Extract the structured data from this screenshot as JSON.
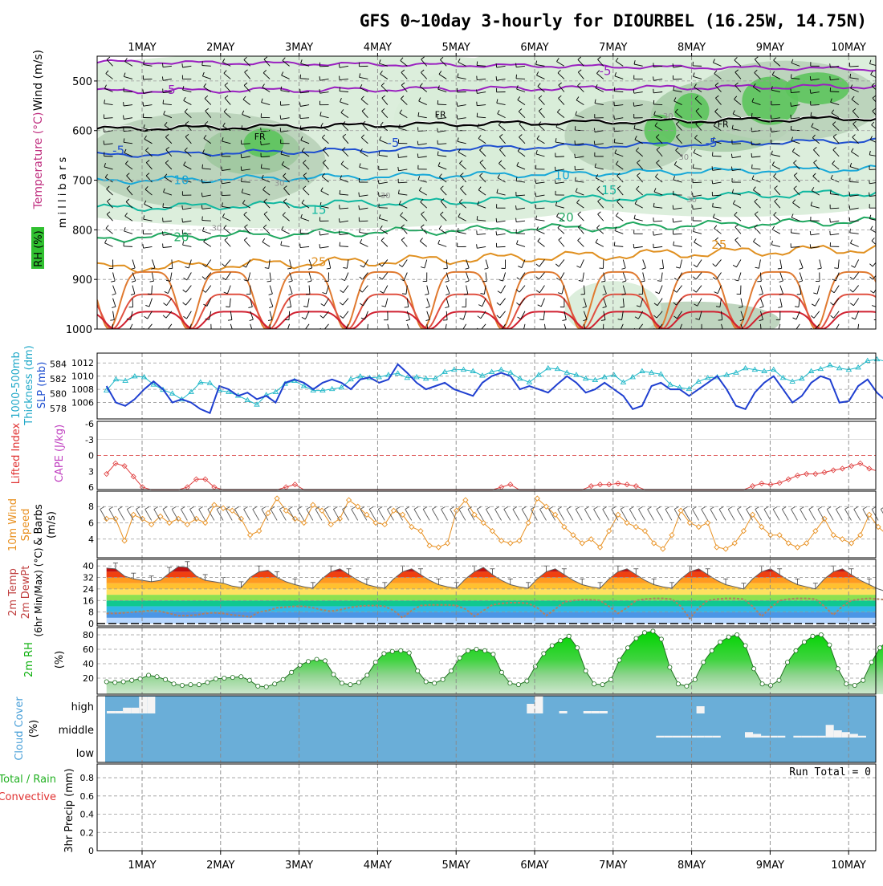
{
  "title": "GFS 0~10day 3-hourly for DIOURBEL (16.25W, 14.75N)",
  "date_labels": [
    "1MAY",
    "2MAY",
    "3MAY",
    "4MAY",
    "5MAY",
    "6MAY",
    "7MAY",
    "8MAY",
    "9MAY",
    "10MAY"
  ],
  "colors": {
    "purple": "#9a20c0",
    "black": "#000000",
    "blue": "#1f4fd0",
    "cyan": "#17a8d8",
    "teal": "#10b8a0",
    "green_iso": "#20a860",
    "orange": "#e09020",
    "red": "#e03030",
    "cyan_thk": "#20b8c8",
    "slp_blue": "#1f3fd0",
    "cape_red": "#e04040",
    "wind_orange": "#e89020",
    "rh_green": "#10c010",
    "cloud_blue": "#6aaed8"
  },
  "chart_data": [
    {
      "panel": "upper-air",
      "type": "contour",
      "ylabel": "m i l l i b a r s",
      "left_labels": [
        "RH (%)",
        "Temperature (°C)",
        "Wind (m/s)"
      ],
      "y_ticks": [
        500,
        600,
        700,
        800,
        900,
        1000
      ],
      "ylim": [
        450,
        1000
      ],
      "temperature_labels": [
        {
          "text": "-5",
          "day": 0.35,
          "p": 518
        },
        {
          "text": "-5",
          "day": 5.9,
          "p": 480
        },
        {
          "text": "FR",
          "day": 1.5,
          "p": 610
        },
        {
          "text": "FR",
          "day": 3.8,
          "p": 566
        },
        {
          "text": "FR",
          "day": 7.4,
          "p": 585
        },
        {
          "text": "-5",
          "day": -0.3,
          "p": 640
        },
        {
          "text": "-5",
          "day": 3.2,
          "p": 625
        },
        {
          "text": "-5",
          "day": 7.25,
          "p": 625
        },
        {
          "text": "10",
          "day": 0.5,
          "p": 700
        },
        {
          "text": "10",
          "day": 5.35,
          "p": 690
        },
        {
          "text": "15",
          "day": 2.25,
          "p": 760
        },
        {
          "text": "15",
          "day": 5.95,
          "p": 720
        },
        {
          "text": "20",
          "day": 0.5,
          "p": 815
        },
        {
          "text": "20",
          "day": 5.4,
          "p": 775
        },
        {
          "text": "25",
          "day": 2.25,
          "p": 865
        },
        {
          "text": "25",
          "day": 7.35,
          "p": 830
        }
      ],
      "rh_labels": [
        {
          "text": "30",
          "day": 1.75,
          "p": 705
        },
        {
          "text": "30",
          "day": 0.95,
          "p": 795
        },
        {
          "text": "30",
          "day": 3.1,
          "p": 730
        },
        {
          "text": "30",
          "day": 6.7,
          "p": 570
        },
        {
          "text": "30",
          "day": 6.9,
          "p": 652
        },
        {
          "text": "30",
          "day": 7.0,
          "p": 738
        }
      ]
    },
    {
      "panel": "thickness-slp",
      "type": "line",
      "left_labels": [
        "1000-500mb",
        "Thickness (dm)",
        "SLP (mb)"
      ],
      "left_ticks": [
        578,
        580,
        582,
        584
      ],
      "right_ticks": [
        1006,
        1008,
        1010,
        1012
      ],
      "series": [
        {
          "unit": "dm",
          "values": [
            580.4,
            581.9,
            581.7,
            582.3,
            582.2,
            581.2,
            580.5,
            580.0,
            579.2,
            580.2,
            581.5,
            581.4,
            580.4,
            580.2,
            579.7,
            579.1,
            578.5,
            579.8,
            580.2,
            581.3,
            581.7,
            581.0,
            580.4,
            580.4,
            580.6,
            580.8,
            581.9,
            582.3,
            582.1,
            582.2,
            582.5,
            582.7,
            582.1,
            582.2,
            582.0,
            582.0,
            582.9,
            583.2,
            583.2,
            583.0,
            582.4,
            582.9,
            583.2,
            582.8,
            582.0,
            581.5,
            582.5,
            583.4,
            583.3,
            582.8,
            582.5,
            582.0,
            581.8,
            582.2,
            582.5,
            581.5,
            582.2,
            583.0,
            582.8,
            582.6,
            581.2,
            580.8,
            580.6,
            581.6,
            582.1,
            582.2,
            582.5,
            582.8,
            583.4,
            583.2,
            583.0,
            583.2,
            582.1,
            581.6,
            582.0,
            583.0,
            583.3,
            583.8,
            583.4,
            583.2,
            583.5,
            584.4,
            584.6,
            584.3,
            583.5,
            583.0
          ]
        },
        {
          "unit": "mb",
          "values": [
            1008.5,
            1006.0,
            1005.5,
            1006.5,
            1008.0,
            1009.2,
            1008.0,
            1006.0,
            1006.5,
            1006.0,
            1005.0,
            1004.4,
            1008.5,
            1008.0,
            1007.0,
            1007.5,
            1006.5,
            1007.0,
            1006.0,
            1009.0,
            1009.5,
            1009.0,
            1008.0,
            1009.0,
            1009.5,
            1009.0,
            1008.0,
            1009.5,
            1009.8,
            1009.0,
            1009.5,
            1011.8,
            1010.5,
            1009.0,
            1008.0,
            1008.5,
            1009.0,
            1008.0,
            1007.5,
            1007.0,
            1009.0,
            1010.0,
            1010.5,
            1010.0,
            1008.0,
            1008.5,
            1008.0,
            1007.5,
            1008.8,
            1010.0,
            1009.0,
            1007.5,
            1008.0,
            1009.0,
            1008.0,
            1007.0,
            1005.0,
            1005.5,
            1008.5,
            1009.0,
            1008.0,
            1008.0,
            1007.0,
            1008.0,
            1009.0,
            1010.0,
            1008.0,
            1005.5,
            1005.0,
            1007.5,
            1009.0,
            1010.0,
            1008.0,
            1006.0,
            1007.0,
            1009.0,
            1010.0,
            1009.5,
            1006.0,
            1006.2,
            1008.5,
            1009.5,
            1007.5,
            1006.2,
            1006.8,
            1007.0
          ]
        }
      ]
    },
    {
      "panel": "cape-li",
      "type": "line",
      "left_labels": [
        "Lifted Index",
        "CAPE (J/kg)"
      ],
      "left_ticks": [
        -6,
        -3,
        0,
        3,
        6
      ],
      "series": [
        {
          "name": "Lifted Index",
          "values": [
            3.5,
            1.5,
            2.0,
            4.0,
            6.0,
            6.5,
            6.5,
            6.5,
            6.5,
            6.0,
            4.5,
            4.5,
            6.0,
            6.5,
            6.5,
            6.5,
            6.5,
            6.5,
            6.5,
            6.5,
            6.0,
            5.5,
            6.5,
            6.5,
            6.5,
            6.5,
            6.5,
            6.5,
            6.5,
            6.5,
            6.5,
            6.5,
            6.5,
            6.5,
            6.5,
            6.5,
            6.5,
            6.5,
            6.5,
            6.5,
            6.5,
            6.5,
            6.5,
            6.5,
            6.0,
            5.5,
            6.5,
            6.5,
            6.5,
            6.5,
            6.5,
            6.5,
            6.5,
            6.5,
            5.8,
            5.5,
            5.5,
            5.3,
            5.5,
            5.8,
            6.5,
            6.5,
            6.5,
            6.5,
            6.5,
            6.5,
            6.5,
            6.5,
            6.5,
            6.5,
            6.5,
            6.5,
            5.8,
            5.3,
            5.5,
            5.2,
            4.5,
            3.8,
            3.5,
            3.5,
            3.2,
            2.8,
            2.5,
            2.0,
            1.5,
            2.5,
            3.0,
            3.5,
            3.6,
            3.2
          ]
        }
      ]
    },
    {
      "panel": "wind10m",
      "type": "line",
      "left_labels": [
        "10m Wind",
        "Speed",
        "& Barbs",
        "(m/s)"
      ],
      "left_ticks": [
        4,
        6,
        8
      ],
      "series": [
        {
          "name": "Speed",
          "values": [
            6.5,
            6.5,
            3.8,
            7.0,
            6.5,
            5.8,
            6.8,
            6.0,
            6.5,
            5.8,
            6.5,
            6.0,
            8.2,
            7.8,
            7.5,
            6.5,
            4.5,
            5.0,
            7.2,
            9.0,
            7.5,
            6.5,
            6.0,
            8.2,
            7.5,
            5.8,
            6.5,
            8.8,
            8.0,
            7.0,
            6.0,
            5.8,
            7.5,
            7.0,
            5.5,
            5.0,
            3.2,
            3.0,
            3.5,
            7.5,
            8.8,
            7.0,
            6.0,
            5.0,
            3.8,
            3.5,
            3.8,
            6.0,
            9.0,
            8.0,
            7.0,
            5.5,
            4.5,
            3.5,
            4.0,
            3.0,
            5.0,
            7.0,
            6.0,
            5.5,
            5.0,
            3.5,
            2.8,
            4.5,
            7.5,
            6.0,
            5.5,
            6.0,
            3.0,
            2.8,
            3.5,
            5.0,
            7.0,
            5.5,
            4.5,
            4.5,
            3.5,
            3.0,
            3.5,
            5.0,
            6.5,
            4.5,
            4.0,
            3.5,
            4.5,
            7.0,
            5.5,
            4.5,
            3.5,
            3.2
          ]
        }
      ]
    },
    {
      "panel": "temp2m",
      "type": "area",
      "left_labels": [
        "2m Temp",
        "2m DewPt",
        "(6hr Min/Max) (°C)"
      ],
      "left_ticks": [
        0,
        8,
        16,
        24,
        32,
        40
      ],
      "series": [
        {
          "name": "2m Temp",
          "values": [
            38.5,
            38.0,
            33.0,
            31.0,
            30.0,
            29.0,
            30.0,
            35.0,
            39.5,
            39.0,
            33.0,
            30.0,
            29.0,
            28.0,
            26.0,
            25.0,
            32.0,
            36.0,
            37.0,
            32.0,
            29.0,
            27.0,
            25.5,
            24.5,
            31.0,
            36.0,
            38.0,
            34.0,
            30.0,
            27.0,
            25.5,
            24.5,
            31.0,
            36.0,
            38.0,
            34.0,
            30.0,
            27.0,
            25.5,
            24.5,
            31.0,
            36.0,
            39.0,
            34.0,
            30.0,
            27.0,
            25.5,
            24.5,
            31.0,
            36.0,
            38.0,
            34.0,
            30.0,
            27.0,
            25.5,
            24.5,
            31.0,
            36.0,
            38.0,
            34.0,
            30.0,
            27.0,
            25.5,
            24.5,
            31.0,
            36.0,
            38.0,
            34.0,
            30.0,
            27.0,
            25.5,
            24.0,
            31.0,
            36.0,
            38.0,
            34.0,
            30.0,
            27.0,
            25.5,
            24.0,
            31.0,
            36.0,
            38.0,
            34.0,
            30.0,
            27.0,
            24.0,
            22.0,
            21.0,
            21.0
          ]
        },
        {
          "name": "2m DewPt",
          "values": [
            7.0,
            7.0,
            7.5,
            8.0,
            8.5,
            9.0,
            8.5,
            7.0,
            5.5,
            5.5,
            6.0,
            7.0,
            7.5,
            7.0,
            6.0,
            5.5,
            4.5,
            8.0,
            9.0,
            11.0,
            11.5,
            12.0,
            12.0,
            11.0,
            9.5,
            8.5,
            9.5,
            11.0,
            12.0,
            12.5,
            12.5,
            12.0,
            9.0,
            4.0,
            9.0,
            12.5,
            13.0,
            13.0,
            13.0,
            12.5,
            10.0,
            5.0,
            9.0,
            13.0,
            14.0,
            14.5,
            14.5,
            14.0,
            11.0,
            5.5,
            10.0,
            15.0,
            16.0,
            16.5,
            16.5,
            16.0,
            12.0,
            7.0,
            11.0,
            16.0,
            17.0,
            17.5,
            17.5,
            17.0,
            12.0,
            3.5,
            11.0,
            16.0,
            17.0,
            17.5,
            17.5,
            17.0,
            12.0,
            5.0,
            11.0,
            16.0,
            17.0,
            17.5,
            17.5,
            17.0,
            12.0,
            6.0,
            12.0,
            16.0,
            17.0,
            17.5,
            17.0,
            16.5,
            16.5,
            16.5
          ]
        }
      ]
    },
    {
      "panel": "rh2m",
      "type": "area",
      "left_labels": [
        "2m RH",
        "(%)"
      ],
      "left_ticks": [
        20,
        40,
        60,
        80
      ],
      "series": [
        {
          "name": "2m RH",
          "values": [
            15,
            14,
            15,
            17,
            19,
            24,
            22,
            18,
            12,
            10,
            11,
            11,
            14,
            19,
            20,
            21,
            22,
            17,
            9,
            8,
            12,
            18,
            28,
            38,
            43,
            46,
            44,
            25,
            13,
            11,
            14,
            24,
            42,
            54,
            57,
            58,
            55,
            30,
            15,
            13,
            18,
            30,
            48,
            58,
            60,
            58,
            53,
            28,
            13,
            11,
            16,
            36,
            54,
            65,
            72,
            78,
            62,
            30,
            12,
            11,
            18,
            45,
            62,
            75,
            83,
            85,
            74,
            35,
            12,
            9,
            18,
            42,
            58,
            70,
            77,
            80,
            65,
            33,
            12,
            10,
            17,
            42,
            58,
            70,
            78,
            80,
            66,
            33,
            12,
            10,
            17,
            42,
            62,
            73,
            75,
            77
          ]
        }
      ]
    },
    {
      "panel": "cloud",
      "type": "bar",
      "left_labels": [
        "Cloud Cover",
        "(%)"
      ],
      "level_labels": [
        "high",
        "middle",
        "low"
      ],
      "high_values": [
        5,
        5,
        12,
        12,
        35,
        35,
        0,
        0,
        0,
        0,
        0,
        0,
        0,
        0,
        0,
        0,
        0,
        0,
        0,
        0,
        0,
        0,
        0,
        0,
        0,
        0,
        0,
        0,
        0,
        0,
        0,
        0,
        0,
        0,
        0,
        0,
        0,
        0,
        0,
        0,
        0,
        0,
        0,
        0,
        0,
        0,
        0,
        0,
        0,
        0,
        0,
        0,
        20,
        40,
        0,
        0,
        5,
        0,
        0,
        5,
        5,
        5,
        0,
        0,
        0,
        0,
        0,
        0,
        0,
        0,
        0,
        0,
        0,
        15,
        0,
        0,
        0,
        0,
        0,
        0,
        0,
        0,
        0,
        0,
        0,
        0,
        0,
        0,
        0,
        0,
        0,
        0,
        0,
        0,
        0
      ],
      "middle_values": [
        0,
        0,
        0,
        0,
        0,
        0,
        0,
        0,
        0,
        0,
        0,
        0,
        0,
        0,
        0,
        0,
        0,
        0,
        0,
        0,
        0,
        0,
        0,
        0,
        0,
        0,
        0,
        0,
        0,
        0,
        0,
        0,
        0,
        0,
        0,
        0,
        0,
        0,
        0,
        0,
        0,
        0,
        0,
        0,
        0,
        0,
        0,
        0,
        0,
        0,
        0,
        0,
        0,
        0,
        0,
        0,
        0,
        0,
        0,
        0,
        0,
        0,
        0,
        0,
        0,
        0,
        0,
        0,
        5,
        5,
        5,
        5,
        5,
        5,
        5,
        5,
        0,
        0,
        0,
        15,
        10,
        5,
        5,
        5,
        0,
        5,
        5,
        5,
        5,
        35,
        20,
        15,
        10,
        5
      ]
    },
    {
      "panel": "precip",
      "type": "bar",
      "left_labels": [
        "Total / Rain",
        "Convective",
        "3hr Precip (mm)"
      ],
      "left_ticks": [
        "0",
        "0.2",
        "0.4",
        "0.6",
        "0.8"
      ],
      "ylim": [
        0,
        0.95
      ],
      "run_total": "Run Total = 0",
      "values": []
    }
  ]
}
